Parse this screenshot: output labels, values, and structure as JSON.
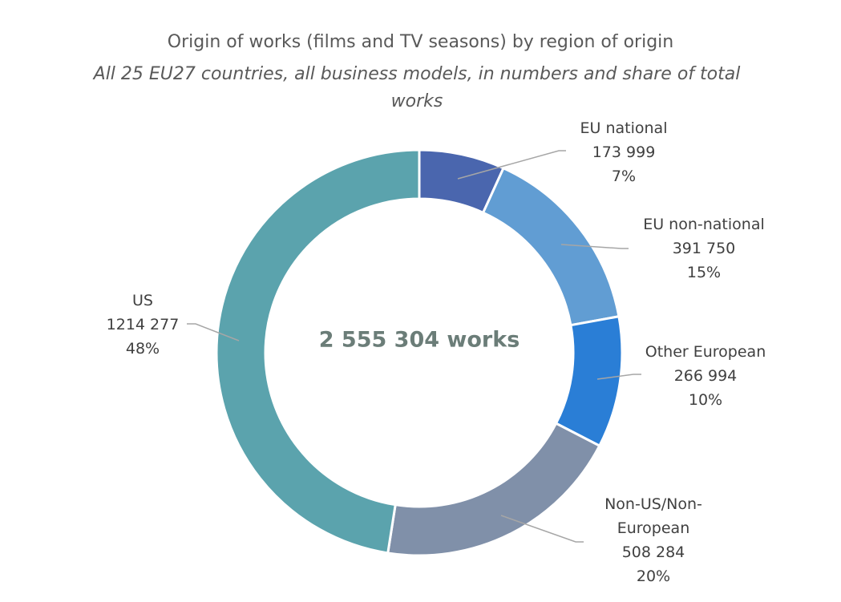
{
  "chart_data": {
    "type": "pie",
    "variant": "donut",
    "title": "Origin of works (films and TV seasons) by region of origin",
    "subtitle": "All 25 EU27 countries, all business models, in numbers and share of total works",
    "center_label": "2 555 304 works",
    "slices": [
      {
        "name": "EU national",
        "value": 173999,
        "value_label": "173 999",
        "percent": "7%",
        "color": "#4a66ae"
      },
      {
        "name": "EU non-national",
        "value": 391750,
        "value_label": "391 750",
        "percent": "15%",
        "color": "#619dd3"
      },
      {
        "name": "Other European",
        "value": 266994,
        "value_label": "266 994",
        "percent": "10%",
        "color": "#2a7ed6"
      },
      {
        "name": "Non-US/Non-European",
        "value": 508284,
        "value_label": "508 284",
        "percent": "20%",
        "color": "#8090a9"
      },
      {
        "name": "US",
        "value": 1214277,
        "value_label": "1214 277",
        "percent": "48%",
        "color": "#5ba3ad"
      }
    ]
  }
}
